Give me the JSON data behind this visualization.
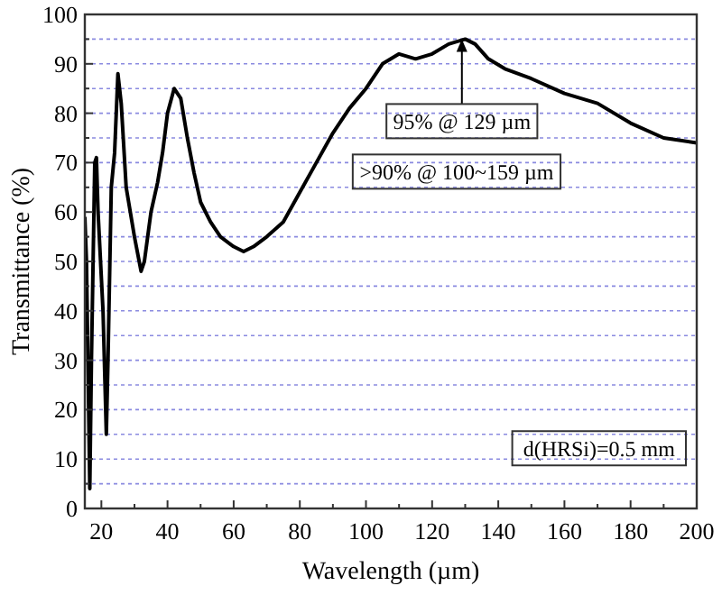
{
  "chart_data": {
    "type": "line",
    "xlabel": "Wavelength (µm)",
    "ylabel": "Transmittance (%)",
    "x": [
      15,
      15.5,
      16.5,
      17,
      18,
      18.5,
      19,
      20.5,
      21.5,
      22,
      23,
      24,
      25,
      26,
      27.5,
      30,
      32,
      33,
      35,
      37,
      38.5,
      40,
      42,
      44,
      46,
      48,
      50,
      53,
      56,
      60,
      63,
      66,
      70,
      75,
      80,
      85,
      90,
      95,
      100,
      105,
      110,
      115,
      120,
      125,
      130,
      133,
      137,
      142,
      150,
      160,
      170,
      180,
      190,
      200
    ],
    "series": [
      {
        "color": "#000000",
        "values": [
          59,
          50,
          4,
          30,
          70,
          71,
          60,
          40,
          15,
          30,
          65,
          72,
          88,
          82,
          65,
          55,
          48,
          50,
          60,
          66,
          72,
          80,
          85,
          83,
          75,
          68,
          62,
          58,
          55,
          53,
          52,
          53,
          55,
          58,
          64,
          70,
          76,
          81,
          85,
          90,
          92,
          91,
          92,
          94,
          95,
          94,
          91,
          89,
          87,
          84,
          82,
          78,
          75,
          74
        ]
      }
    ],
    "xlim": [
      15,
      200
    ],
    "xticks": [
      20,
      {
        "value": 30,
        "label": null
      },
      40,
      {
        "value": 50,
        "label": null
      },
      60,
      {
        "value": 70,
        "label": null
      },
      80,
      {
        "value": 90,
        "label": null
      },
      100,
      {
        "value": 110,
        "label": null
      },
      120,
      {
        "value": 130,
        "label": null
      },
      140,
      {
        "value": 150,
        "label": null
      },
      160,
      {
        "value": 170,
        "label": null
      },
      180,
      {
        "value": 190,
        "label": null
      },
      200
    ],
    "ylim": [
      0,
      100
    ],
    "yticks": [
      0,
      {
        "value": 5,
        "label": null
      },
      10,
      {
        "value": 15,
        "label": null
      },
      20,
      {
        "value": 25,
        "label": null
      },
      30,
      {
        "value": 35,
        "label": null
      },
      40,
      {
        "value": 45,
        "label": null
      },
      50,
      {
        "value": 55,
        "label": null
      },
      60,
      {
        "value": 65,
        "label": null
      },
      70,
      {
        "value": 75,
        "label": null
      },
      80,
      {
        "value": 85,
        "label": null
      },
      90,
      {
        "value": 95,
        "label": null
      },
      100
    ],
    "grid": "y",
    "marker": "none",
    "line_style": "solid",
    "annotations": [
      {
        "text": "95% @ 129 µm",
        "x": 129,
        "y": 95
      },
      ">90% @ 100~159 µm",
      "d(HRSi)=0.5 mm"
    ]
  }
}
